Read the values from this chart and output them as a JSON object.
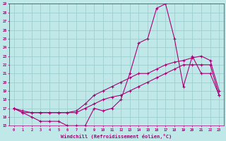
{
  "xlabel": "Windchill (Refroidissement éolien,°C)",
  "xlim": [
    -0.5,
    23.5
  ],
  "ylim": [
    15,
    29
  ],
  "yticks": [
    15,
    16,
    17,
    18,
    19,
    20,
    21,
    22,
    23,
    24,
    25,
    26,
    27,
    28,
    29
  ],
  "xticks": [
    0,
    1,
    2,
    3,
    4,
    5,
    6,
    7,
    8,
    9,
    10,
    11,
    12,
    13,
    14,
    15,
    16,
    17,
    18,
    19,
    20,
    21,
    22,
    23
  ],
  "bg_color": "#c0e8e8",
  "grid_color": "#9dcece",
  "line_color": "#aa0077",
  "series": [
    {
      "x": [
        0,
        1,
        2,
        3,
        4,
        5,
        6,
        7,
        8,
        9,
        10,
        11,
        12,
        13,
        14,
        15,
        16,
        17,
        18,
        19,
        20,
        21,
        22,
        23
      ],
      "y": [
        17,
        16.5,
        16,
        15.5,
        15.5,
        15.5,
        15,
        15,
        15,
        17,
        16.7,
        17,
        18,
        21,
        24.5,
        25,
        28.5,
        29,
        25,
        19.5,
        23,
        21,
        21,
        18.5
      ]
    },
    {
      "x": [
        0,
        1,
        2,
        3,
        4,
        5,
        6,
        7,
        8,
        9,
        10,
        11,
        12,
        13,
        14,
        15,
        16,
        17,
        18,
        19,
        20,
        21,
        22,
        23
      ],
      "y": [
        17,
        16.7,
        16.5,
        16.5,
        16.5,
        16.5,
        16.5,
        16.7,
        17.5,
        18.5,
        19,
        19.5,
        20,
        20.5,
        21,
        21,
        21.5,
        22,
        22.3,
        22.5,
        22.8,
        23,
        22.5,
        19
      ]
    },
    {
      "x": [
        0,
        1,
        2,
        3,
        4,
        5,
        6,
        7,
        8,
        9,
        10,
        11,
        12,
        13,
        14,
        15,
        16,
        17,
        18,
        19,
        20,
        21,
        22,
        23
      ],
      "y": [
        17,
        16.5,
        16.5,
        16.5,
        16.5,
        16.5,
        16.5,
        16.5,
        17,
        17.5,
        18,
        18.3,
        18.5,
        19,
        19.5,
        20,
        20.5,
        21,
        21.5,
        22,
        22,
        22,
        22,
        18.5
      ]
    }
  ]
}
